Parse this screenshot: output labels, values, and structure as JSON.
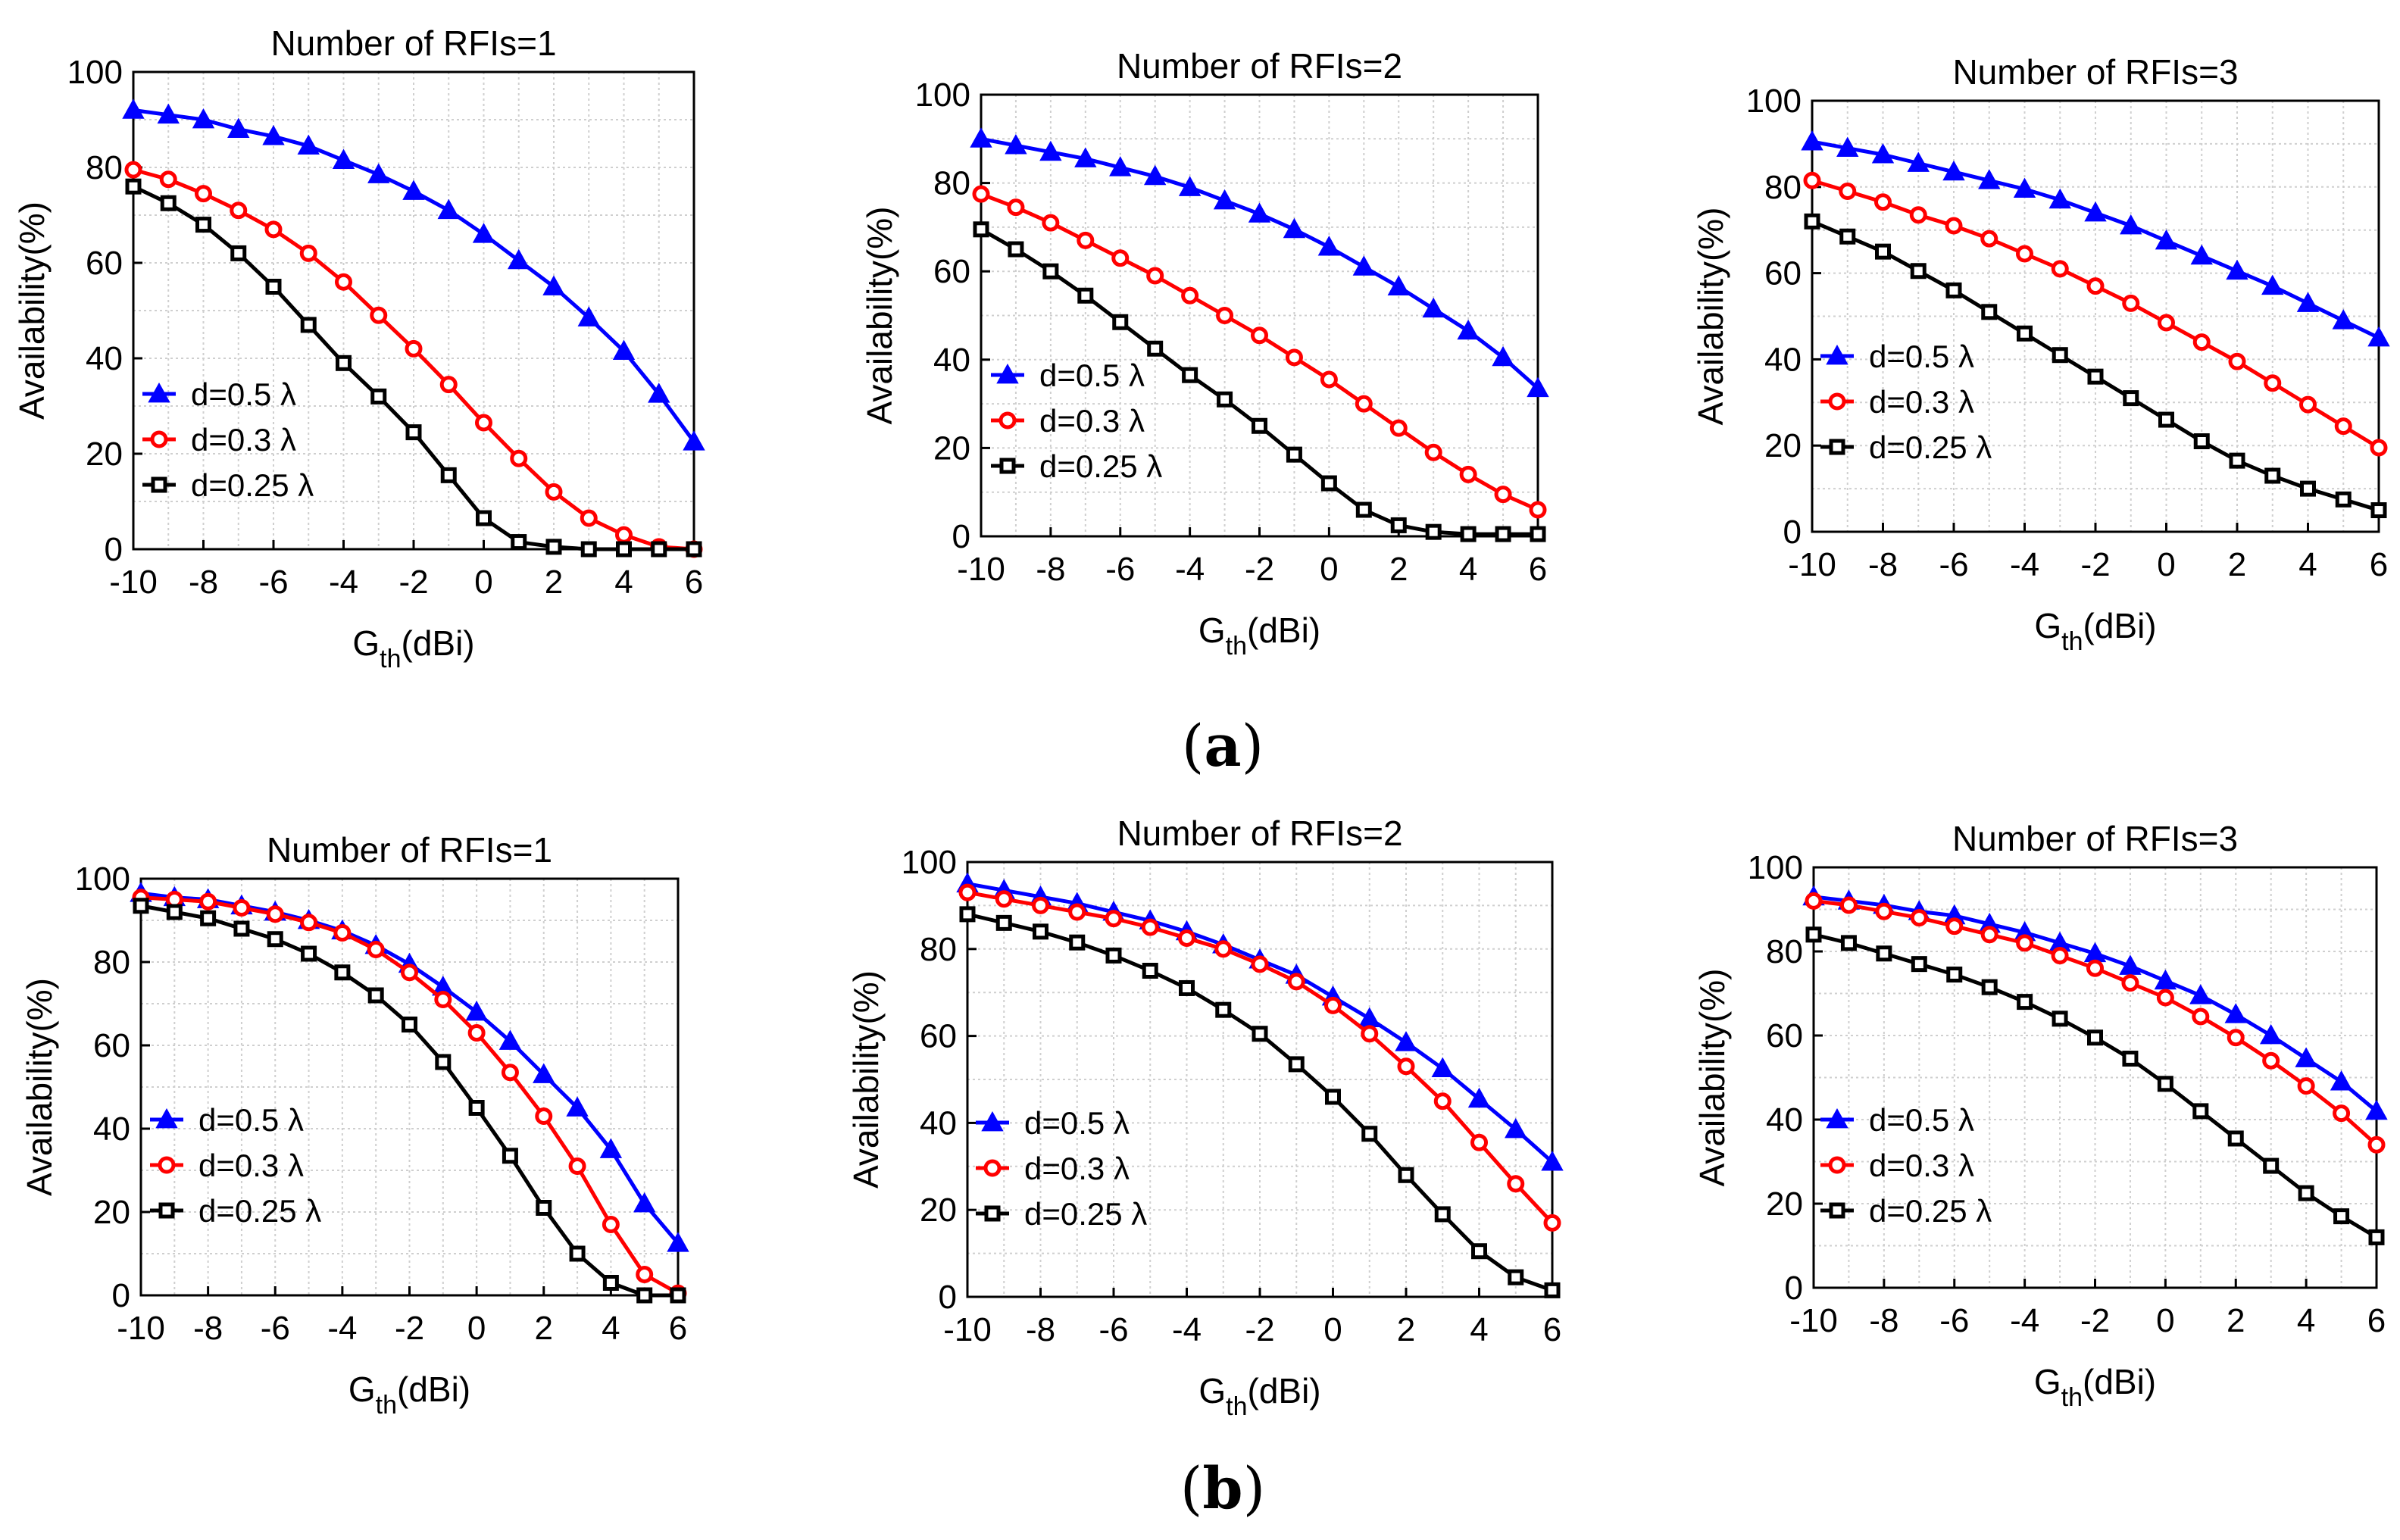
{
  "captions": {
    "a": "a",
    "b": "b"
  },
  "style": {
    "series_colors": [
      "#0000ff",
      "#ff0000",
      "#000000"
    ],
    "series_markers": [
      "triangle",
      "circle",
      "square"
    ]
  },
  "chart_data": [
    {
      "type": "line",
      "panel": "a",
      "title": "Number of RFIs=1",
      "xlabel": {
        "main": "G",
        "sub": "th",
        "rest": "(dBi)"
      },
      "ylabel": "Availability(%)",
      "xlim": [
        -10,
        6
      ],
      "ylim": [
        0,
        100
      ],
      "xticks": [
        -10,
        -8,
        -6,
        -4,
        -2,
        0,
        2,
        4,
        6
      ],
      "yticks": [
        0,
        20,
        40,
        60,
        80,
        100
      ],
      "grid": true,
      "legend": "center-left",
      "x": [
        -10,
        -9,
        -8,
        -7,
        -6,
        -5,
        -4,
        -3,
        -2,
        -1,
        0,
        1,
        2,
        3,
        4,
        5,
        6
      ],
      "series": [
        {
          "name": "d=0.5 λ",
          "values": [
            92,
            91,
            90,
            88,
            86.5,
            84.5,
            81.5,
            78.5,
            75,
            71,
            66,
            60.5,
            55,
            48.5,
            41.5,
            32.5,
            22.5
          ]
        },
        {
          "name": "d=0.3 λ",
          "values": [
            79.5,
            77.5,
            74.5,
            71,
            67,
            62,
            56,
            49,
            42,
            34.5,
            26.5,
            19,
            12,
            6.5,
            3,
            0.5,
            0
          ]
        },
        {
          "name": "d=0.25 λ",
          "values": [
            76,
            72.5,
            68,
            62,
            55,
            47,
            39,
            32,
            24.5,
            15.5,
            6.5,
            1.5,
            0.5,
            0,
            0,
            0,
            0
          ]
        }
      ]
    },
    {
      "type": "line",
      "panel": "a",
      "title": "Number of RFIs=2",
      "xlabel": {
        "main": "G",
        "sub": "th",
        "rest": "(dBi)"
      },
      "ylabel": "Availability(%)",
      "xlim": [
        -10,
        6
      ],
      "ylim": [
        0,
        100
      ],
      "xticks": [
        -10,
        -8,
        -6,
        -4,
        -2,
        0,
        2,
        4,
        6
      ],
      "yticks": [
        0,
        20,
        40,
        60,
        80,
        100
      ],
      "grid": true,
      "legend": "center-left",
      "x": [
        -10,
        -9,
        -8,
        -7,
        -6,
        -5,
        -4,
        -3,
        -2,
        -1,
        0,
        1,
        2,
        3,
        4,
        5,
        6
      ],
      "series": [
        {
          "name": "d=0.5 λ",
          "values": [
            90,
            88.5,
            87,
            85.5,
            83.5,
            81.5,
            79,
            76,
            73,
            69.5,
            65.5,
            61,
            56.5,
            51.5,
            46.5,
            40.5,
            33.5
          ]
        },
        {
          "name": "d=0.3 λ",
          "values": [
            77.5,
            74.5,
            71,
            67,
            63,
            59,
            54.5,
            50,
            45.5,
            40.5,
            35.5,
            30,
            24.5,
            19,
            14,
            9.5,
            6
          ]
        },
        {
          "name": "d=0.25 λ",
          "values": [
            69.5,
            65,
            60,
            54.5,
            48.5,
            42.5,
            36.5,
            31,
            25,
            18.5,
            12,
            6,
            2.5,
            1,
            0.5,
            0.5,
            0.5
          ]
        }
      ]
    },
    {
      "type": "line",
      "panel": "a",
      "title": "Number of RFIs=3",
      "xlabel": {
        "main": "G",
        "sub": "th",
        "rest": "(dBi)"
      },
      "ylabel": "Availability(%)",
      "xlim": [
        -10,
        6
      ],
      "ylim": [
        0,
        100
      ],
      "xticks": [
        -10,
        -8,
        -6,
        -4,
        -2,
        0,
        2,
        4,
        6
      ],
      "yticks": [
        0,
        20,
        40,
        60,
        80,
        100
      ],
      "grid": true,
      "legend": "center-left",
      "x": [
        -10,
        -9,
        -8,
        -7,
        -6,
        -5,
        -4,
        -3,
        -2,
        -1,
        0,
        1,
        2,
        3,
        4,
        5,
        6
      ],
      "series": [
        {
          "name": "d=0.5 λ",
          "values": [
            90.5,
            89,
            87.5,
            85.5,
            83.5,
            81.5,
            79.5,
            77,
            74,
            71,
            67.5,
            64,
            60.5,
            57,
            53,
            49,
            45
          ]
        },
        {
          "name": "d=0.3 λ",
          "values": [
            81.5,
            79,
            76.5,
            73.5,
            71,
            68,
            64.5,
            61,
            57,
            53,
            48.5,
            44,
            39.5,
            34.5,
            29.5,
            24.5,
            19.5
          ]
        },
        {
          "name": "d=0.25 λ",
          "values": [
            72,
            68.5,
            65,
            60.5,
            56,
            51,
            46,
            41,
            36,
            31,
            26,
            21,
            16.5,
            13,
            10,
            7.5,
            5
          ]
        }
      ]
    },
    {
      "type": "line",
      "panel": "b",
      "title": "Number of RFIs=1",
      "xlabel": {
        "main": "G",
        "sub": "th",
        "rest": "(dBi)"
      },
      "ylabel": "Availability(%)",
      "xlim": [
        -10,
        6
      ],
      "ylim": [
        0,
        100
      ],
      "xticks": [
        -10,
        -8,
        -6,
        -4,
        -2,
        0,
        2,
        4,
        6
      ],
      "yticks": [
        0,
        20,
        40,
        60,
        80,
        100
      ],
      "grid": true,
      "legend": "bottom-left",
      "x": [
        -10,
        -9,
        -8,
        -7,
        -6,
        -5,
        -4,
        -3,
        -2,
        -1,
        0,
        1,
        2,
        3,
        4,
        5,
        6
      ],
      "series": [
        {
          "name": "d=0.5 λ",
          "values": [
            96.5,
            95.5,
            95,
            93.5,
            92,
            90,
            87.5,
            84,
            79.5,
            74,
            68,
            61,
            53,
            45,
            35,
            22,
            12.5
          ]
        },
        {
          "name": "d=0.3 λ",
          "values": [
            95.5,
            95,
            94.5,
            93,
            91.5,
            89.5,
            87,
            83,
            77.5,
            71,
            63,
            53.5,
            43,
            31,
            17,
            5,
            0.5
          ]
        },
        {
          "name": "d=0.25 λ",
          "values": [
            93.5,
            92,
            90.5,
            88,
            85.5,
            82,
            77.5,
            72,
            65,
            56,
            45,
            33.5,
            21,
            10,
            3,
            0,
            0
          ]
        }
      ]
    },
    {
      "type": "line",
      "panel": "b",
      "title": "Number of RFIs=2",
      "xlabel": {
        "main": "G",
        "sub": "th",
        "rest": "(dBi)"
      },
      "ylabel": "Availability(%)",
      "xlim": [
        -10,
        6
      ],
      "ylim": [
        0,
        100
      ],
      "xticks": [
        -10,
        -8,
        -6,
        -4,
        -2,
        0,
        2,
        4,
        6
      ],
      "yticks": [
        0,
        20,
        40,
        60,
        80,
        100
      ],
      "grid": true,
      "legend": "bottom-left",
      "x": [
        -10,
        -9,
        -8,
        -7,
        -6,
        -5,
        -4,
        -3,
        -2,
        -1,
        0,
        1,
        2,
        3,
        4,
        5,
        6
      ],
      "series": [
        {
          "name": "d=0.5 λ",
          "values": [
            95,
            93.5,
            92,
            90.5,
            88.5,
            86.5,
            84,
            81,
            77.5,
            74,
            69,
            64,
            58.5,
            52.5,
            45.5,
            38.5,
            31
          ]
        },
        {
          "name": "d=0.3 λ",
          "values": [
            93,
            91.5,
            90,
            88.5,
            87,
            85,
            82.5,
            80,
            76.5,
            72.5,
            67,
            60.5,
            53,
            45,
            35.5,
            26,
            17
          ]
        },
        {
          "name": "d=0.25 λ",
          "values": [
            88,
            86,
            84,
            81.5,
            78.5,
            75,
            71,
            66,
            60.5,
            53.5,
            46,
            37.5,
            28,
            19,
            10.5,
            4.5,
            1.5
          ]
        }
      ]
    },
    {
      "type": "line",
      "panel": "b",
      "title": "Number of RFIs=3",
      "xlabel": {
        "main": "G",
        "sub": "th",
        "rest": "(dBi)"
      },
      "ylabel": "Availability(%)",
      "xlim": [
        -10,
        6
      ],
      "ylim": [
        0,
        100
      ],
      "xticks": [
        -10,
        -8,
        -6,
        -4,
        -2,
        0,
        2,
        4,
        6
      ],
      "yticks": [
        0,
        20,
        40,
        60,
        80,
        100
      ],
      "grid": true,
      "legend": "bottom-left",
      "x": [
        -10,
        -9,
        -8,
        -7,
        -6,
        -5,
        -4,
        -3,
        -2,
        -1,
        0,
        1,
        2,
        3,
        4,
        5,
        6
      ],
      "series": [
        {
          "name": "d=0.5 λ",
          "values": [
            93,
            92,
            91,
            89.5,
            88.5,
            86.5,
            84.5,
            82,
            79.5,
            76.5,
            73,
            69.5,
            65,
            60,
            54.5,
            49,
            42
          ]
        },
        {
          "name": "d=0.3 λ",
          "values": [
            92,
            91,
            89.5,
            88,
            86,
            84,
            82,
            79,
            76,
            72.5,
            69,
            64.5,
            59.5,
            54,
            48,
            41.5,
            34
          ]
        },
        {
          "name": "d=0.25 λ",
          "values": [
            84,
            82,
            79.5,
            77,
            74.5,
            71.5,
            68,
            64,
            59.5,
            54.5,
            48.5,
            42,
            35.5,
            29,
            22.5,
            17,
            12
          ]
        }
      ]
    }
  ]
}
